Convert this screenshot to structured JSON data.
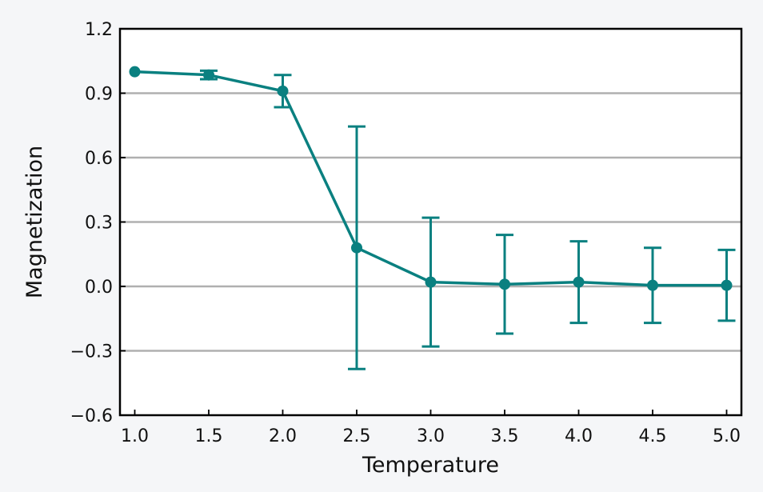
{
  "chart_data": {
    "type": "line",
    "title": "",
    "xlabel": "Temperature",
    "ylabel": "Magnetization",
    "xlim": [
      0.9,
      5.1
    ],
    "ylim": [
      -0.6,
      1.2
    ],
    "grid": "horizontal",
    "x": [
      1.0,
      1.5,
      2.0,
      2.5,
      3.0,
      3.5,
      4.0,
      4.5,
      5.0
    ],
    "series": [
      {
        "name": "Magnetization",
        "values": [
          1.0,
          0.985,
          0.91,
          0.18,
          0.02,
          0.01,
          0.02,
          0.005,
          0.005
        ],
        "err": [
          0.0,
          0.02,
          0.075,
          0.565,
          0.3,
          0.23,
          0.19,
          0.175,
          0.165
        ],
        "color": "#0a8080"
      }
    ],
    "x_ticks": [
      "1.0",
      "1.5",
      "2.0",
      "2.5",
      "3.0",
      "3.5",
      "4.0",
      "4.5",
      "5.0"
    ],
    "x_tick_values": [
      1.0,
      1.5,
      2.0,
      2.5,
      3.0,
      3.5,
      4.0,
      4.5,
      5.0
    ],
    "y_ticks": [
      "−0.6",
      "−0.3",
      "0.0",
      "0.3",
      "0.6",
      "0.9",
      "1.2"
    ],
    "y_tick_values": [
      -0.6,
      -0.3,
      0.0,
      0.3,
      0.6,
      0.9,
      1.2
    ],
    "colors": {
      "background": "#f5f6f8",
      "plot_bg": "#ffffff",
      "grid": "#b0b0b0",
      "axis": "#000000"
    }
  }
}
